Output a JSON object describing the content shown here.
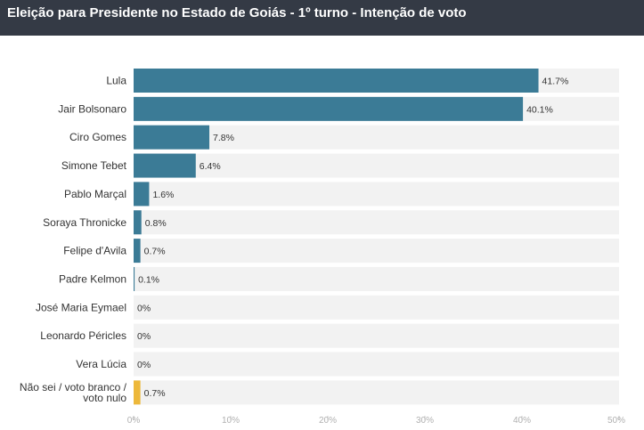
{
  "header": {
    "title": "Eleição para Presidente no Estado de Goiás - 1º turno - Intenção de voto"
  },
  "colors": {
    "header_bg": "#343a45",
    "bar_primary": "#3b7b96",
    "bar_undecided": "#edb83b",
    "track": "#f2f2f2"
  },
  "chart_data": {
    "type": "bar",
    "orientation": "horizontal",
    "title": "Eleição para Presidente no Estado de Goiás - 1º turno - Intenção de voto",
    "categories": [
      "Lula",
      "Jair Bolsonaro",
      "Ciro Gomes",
      "Simone Tebet",
      "Pablo Marçal",
      "Soraya Thronicke",
      "Felipe d'Avila",
      "Padre Kelmon",
      "José Maria Eymael",
      "Leonardo Péricles",
      "Vera Lúcia",
      "Não sei / voto branco / voto nulo"
    ],
    "category_lines": [
      [
        "Lula"
      ],
      [
        "Jair Bolsonaro"
      ],
      [
        "Ciro Gomes"
      ],
      [
        "Simone Tebet"
      ],
      [
        "Pablo Marçal"
      ],
      [
        "Soraya Thronicke"
      ],
      [
        "Felipe d'Avila"
      ],
      [
        "Padre Kelmon"
      ],
      [
        "José Maria Eymael"
      ],
      [
        "Leonardo Péricles"
      ],
      [
        "Vera Lúcia"
      ],
      [
        "Não sei / voto branco /",
        "voto nulo"
      ]
    ],
    "values": [
      41.7,
      40.1,
      7.8,
      6.4,
      1.6,
      0.8,
      0.7,
      0.1,
      0,
      0,
      0,
      0.7
    ],
    "value_labels": [
      "41.7%",
      "40.1%",
      "7.8%",
      "6.4%",
      "1.6%",
      "0.8%",
      "0.7%",
      "0.1%",
      "0%",
      "0%",
      "0%",
      "0.7%"
    ],
    "highlight_index": 11,
    "xlim": [
      0,
      50
    ],
    "xticks": [
      0,
      10,
      20,
      30,
      40,
      50
    ],
    "xtick_labels": [
      "0%",
      "10%",
      "20%",
      "30%",
      "40%",
      "50%"
    ],
    "xlabel": "",
    "ylabel": ""
  }
}
